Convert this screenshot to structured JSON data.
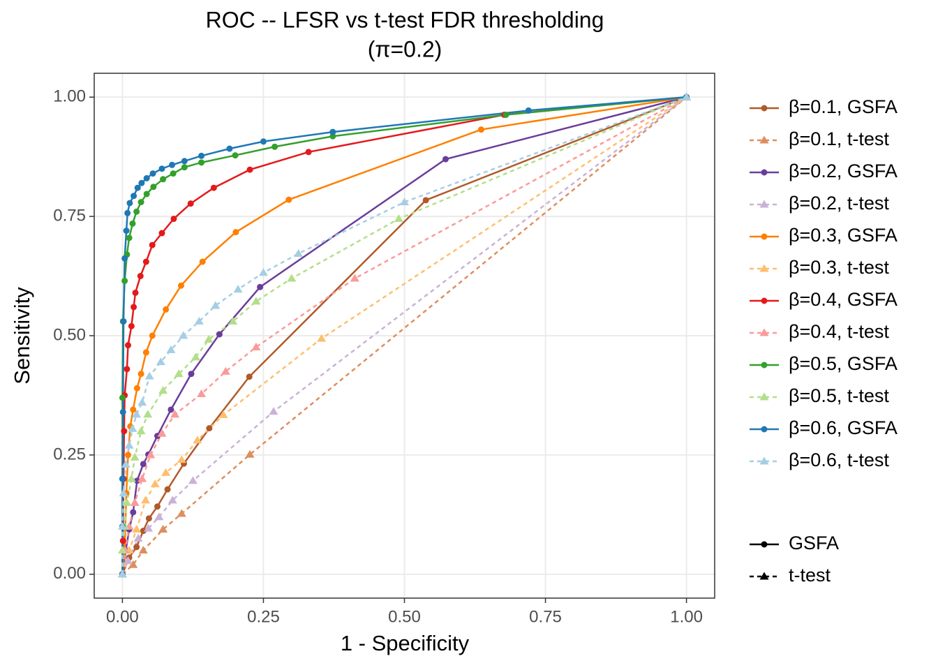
{
  "chart_data": {
    "type": "line",
    "title": "ROC -- LFSR vs t-test FDR thresholding",
    "subtitle": "(π=0.2)",
    "x_label": "1 - Specificity",
    "y_label": "Sensitivity",
    "xlim": [
      -0.05,
      1.05
    ],
    "ylim": [
      -0.05,
      1.05
    ],
    "xticks": [
      {
        "value": 0,
        "label": "0.00"
      },
      {
        "value": 0.25,
        "label": "0.25"
      },
      {
        "value": 0.5,
        "label": "0.50"
      },
      {
        "value": 0.75,
        "label": "0.75"
      },
      {
        "value": 1,
        "label": "1.00"
      }
    ],
    "yticks": [
      {
        "value": 0,
        "label": "0.00"
      },
      {
        "value": 0.25,
        "label": "0.25"
      },
      {
        "value": 0.5,
        "label": "0.50"
      },
      {
        "value": 0.75,
        "label": "0.75"
      },
      {
        "value": 1,
        "label": "1.00"
      }
    ],
    "grid": true,
    "legend": "right",
    "series": [
      {
        "name": "β=0.1, GSFA",
        "color": "#B15928",
        "dash": false,
        "marker": "circle",
        "x": [
          0,
          0.012,
          0.025,
          0.037,
          0.047,
          0.062,
          0.08,
          0.109,
          0.154,
          0.225,
          0.538,
          1
        ],
        "values": [
          0,
          0.035,
          0.057,
          0.091,
          0.117,
          0.142,
          0.178,
          0.232,
          0.306,
          0.414,
          0.784,
          1
        ]
      },
      {
        "name": "β=0.1, t-test",
        "color": "#DE8E5E",
        "dash": true,
        "marker": "triangle",
        "x": [
          0,
          0.019,
          0.037,
          0.072,
          0.105,
          0.226,
          1
        ],
        "values": [
          0,
          0.02,
          0.05,
          0.094,
          0.127,
          0.251,
          1
        ]
      },
      {
        "name": "β=0.2, GSFA",
        "color": "#6A3D9A",
        "dash": false,
        "marker": "circle",
        "x": [
          0,
          0.006,
          0.012,
          0.019,
          0.026,
          0.037,
          0.046,
          0.062,
          0.086,
          0.122,
          0.172,
          0.244,
          0.573,
          1
        ],
        "values": [
          0,
          0.05,
          0.094,
          0.13,
          0.196,
          0.231,
          0.251,
          0.29,
          0.345,
          0.42,
          0.503,
          0.602,
          0.87,
          1
        ]
      },
      {
        "name": "β=0.2, t-test",
        "color": "#CAB2D6",
        "dash": true,
        "marker": "triangle",
        "x": [
          0,
          0.01,
          0.028,
          0.046,
          0.065,
          0.089,
          0.125,
          0.268,
          1
        ],
        "values": [
          0,
          0.028,
          0.075,
          0.096,
          0.12,
          0.155,
          0.196,
          0.341,
          1
        ]
      },
      {
        "name": "β=0.3, GSFA",
        "color": "#FF7F00",
        "dash": false,
        "marker": "circle",
        "x": [
          0,
          0.004,
          0.007,
          0.01,
          0.014,
          0.019,
          0.026,
          0.033,
          0.042,
          0.053,
          0.077,
          0.104,
          0.142,
          0.201,
          0.295,
          0.636,
          1
        ],
        "values": [
          0,
          0.05,
          0.17,
          0.25,
          0.31,
          0.345,
          0.39,
          0.42,
          0.465,
          0.5,
          0.555,
          0.605,
          0.655,
          0.717,
          0.785,
          0.932,
          1
        ]
      },
      {
        "name": "β=0.3, t-test",
        "color": "#FDBF6F",
        "dash": true,
        "marker": "triangle",
        "x": [
          0,
          0.012,
          0.025,
          0.041,
          0.058,
          0.077,
          0.105,
          0.133,
          0.179,
          0.353,
          1
        ],
        "values": [
          0,
          0.05,
          0.094,
          0.155,
          0.189,
          0.213,
          0.24,
          0.281,
          0.334,
          0.494,
          1
        ]
      },
      {
        "name": "β=0.4, GSFA",
        "color": "#E31A1C",
        "dash": false,
        "marker": "circle",
        "x": [
          0,
          0.001,
          0.002,
          0.003,
          0.004,
          0.008,
          0.01,
          0.016,
          0.02,
          0.023,
          0.032,
          0.042,
          0.053,
          0.07,
          0.091,
          0.121,
          0.162,
          0.226,
          0.33,
          0.677,
          1
        ],
        "values": [
          0,
          0.07,
          0.2,
          0.3,
          0.375,
          0.43,
          0.48,
          0.52,
          0.56,
          0.59,
          0.625,
          0.655,
          0.69,
          0.715,
          0.745,
          0.777,
          0.81,
          0.848,
          0.885,
          0.963,
          1
        ]
      },
      {
        "name": "β=0.4, t-test",
        "color": "#FB9A99",
        "dash": true,
        "marker": "triangle",
        "x": [
          0,
          0.005,
          0.012,
          0.022,
          0.035,
          0.05,
          0.07,
          0.093,
          0.14,
          0.183,
          0.237,
          0.412,
          1
        ],
        "values": [
          0,
          0.05,
          0.1,
          0.15,
          0.2,
          0.25,
          0.295,
          0.335,
          0.378,
          0.425,
          0.476,
          0.62,
          1
        ]
      },
      {
        "name": "β=0.5, GSFA",
        "color": "#33A02C",
        "dash": false,
        "marker": "circle",
        "x": [
          0,
          0,
          0,
          0.001,
          0.004,
          0.008,
          0.012,
          0.018,
          0.025,
          0.033,
          0.043,
          0.055,
          0.072,
          0.09,
          0.11,
          0.14,
          0.2,
          0.27,
          0.373,
          0.68,
          1
        ],
        "values": [
          0,
          0.2,
          0.37,
          0.53,
          0.615,
          0.67,
          0.705,
          0.735,
          0.76,
          0.78,
          0.797,
          0.812,
          0.828,
          0.84,
          0.853,
          0.863,
          0.878,
          0.896,
          0.918,
          0.963,
          1
        ]
      },
      {
        "name": "β=0.5, t-test",
        "color": "#B2DF8A",
        "dash": true,
        "marker": "triangle",
        "x": [
          0,
          0,
          0.004,
          0.008,
          0.016,
          0.022,
          0.033,
          0.045,
          0.072,
          0.1,
          0.13,
          0.153,
          0.196,
          0.237,
          0.3,
          0.49,
          1
        ],
        "values": [
          0,
          0.05,
          0.1,
          0.15,
          0.2,
          0.245,
          0.3,
          0.335,
          0.385,
          0.42,
          0.455,
          0.492,
          0.53,
          0.572,
          0.62,
          0.745,
          1
        ]
      },
      {
        "name": "β=0.6, GSFA",
        "color": "#1F78B4",
        "dash": false,
        "marker": "circle",
        "x": [
          0,
          0,
          0,
          0.001,
          0.002,
          0.004,
          0.007,
          0.009,
          0.013,
          0.02,
          0.027,
          0.034,
          0.043,
          0.054,
          0.07,
          0.088,
          0.11,
          0.14,
          0.19,
          0.25,
          0.373,
          0.72,
          1
        ],
        "values": [
          0,
          0.1,
          0.2,
          0.34,
          0.53,
          0.662,
          0.72,
          0.757,
          0.778,
          0.793,
          0.81,
          0.82,
          0.83,
          0.84,
          0.85,
          0.858,
          0.866,
          0.877,
          0.892,
          0.907,
          0.927,
          0.972,
          1
        ]
      },
      {
        "name": "β=0.6, t-test",
        "color": "#A6CEE3",
        "dash": true,
        "marker": "triangle",
        "x": [
          0,
          0,
          0.002,
          0.006,
          0.012,
          0.018,
          0.025,
          0.035,
          0.048,
          0.068,
          0.086,
          0.108,
          0.136,
          0.165,
          0.205,
          0.25,
          0.312,
          0.5,
          1
        ],
        "values": [
          0,
          0.1,
          0.17,
          0.23,
          0.27,
          0.305,
          0.335,
          0.36,
          0.415,
          0.445,
          0.47,
          0.5,
          0.53,
          0.563,
          0.597,
          0.632,
          0.672,
          0.78,
          1
        ]
      }
    ],
    "shape_legend": [
      {
        "name": "GSFA",
        "dash": false,
        "marker": "circle"
      },
      {
        "name": "t-test",
        "dash": true,
        "marker": "triangle"
      }
    ]
  }
}
